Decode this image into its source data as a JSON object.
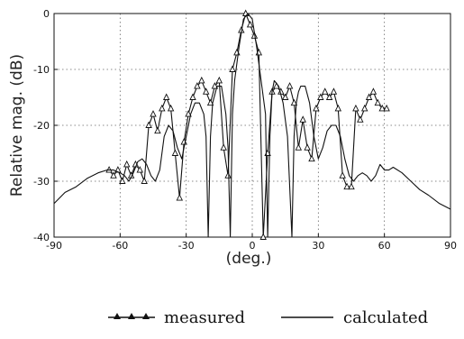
{
  "chart_data": {
    "type": "line",
    "xlabel": "(deg.)",
    "ylabel": "Relative mag. (dB)",
    "xlim": [
      -90,
      90
    ],
    "ylim": [
      -40,
      0
    ],
    "x_ticks": [
      -90,
      -60,
      -30,
      0,
      30,
      60,
      90
    ],
    "y_ticks": [
      0,
      -10,
      -20,
      -30,
      -40
    ],
    "grid": true,
    "legend_position": "bottom",
    "series": [
      {
        "name": "measured",
        "style": "line-with-triangles",
        "color": "#111111",
        "x": [
          -65,
          -63,
          -61,
          -59,
          -57,
          -55,
          -53,
          -51,
          -49,
          -47,
          -45,
          -43,
          -41,
          -39,
          -37,
          -35,
          -33,
          -31,
          -29,
          -27,
          -25,
          -23,
          -21,
          -19,
          -17,
          -15,
          -13,
          -11,
          -9,
          -7,
          -5,
          -3,
          -1,
          1,
          3,
          5,
          7,
          9,
          11,
          13,
          15,
          17,
          19,
          21,
          23,
          25,
          27,
          29,
          31,
          33,
          35,
          37,
          39,
          41,
          43,
          45,
          47,
          49,
          51,
          53,
          55,
          57,
          59,
          61
        ],
        "y": [
          -28,
          -29,
          -28,
          -30,
          -27,
          -29,
          -27,
          -28,
          -30,
          -20,
          -18,
          -21,
          -17,
          -15,
          -17,
          -25,
          -33,
          -23,
          -18,
          -15,
          -13,
          -12,
          -14,
          -16,
          -13,
          -12,
          -24,
          -29,
          -10,
          -7,
          -3,
          0,
          -2,
          -4,
          -7,
          -40,
          -25,
          -14,
          -13,
          -14,
          -15,
          -13,
          -16,
          -24,
          -19,
          -24,
          -26,
          -17,
          -15,
          -14,
          -15,
          -14,
          -17,
          -29,
          -31,
          -31,
          -17,
          -19,
          -17,
          -15,
          -14,
          -16,
          -17,
          -17
        ]
      },
      {
        "name": "calculated",
        "style": "line",
        "color": "#111111",
        "x": [
          -90,
          -85,
          -80,
          -75,
          -70,
          -66,
          -63,
          -60,
          -58,
          -56,
          -54,
          -52,
          -50,
          -48,
          -46,
          -44,
          -42,
          -40,
          -38,
          -36,
          -34,
          -32,
          -30,
          -28,
          -26,
          -24,
          -22,
          -21,
          -20,
          -19,
          -18,
          -16,
          -14,
          -12,
          -11,
          -10,
          -9,
          -8,
          -6,
          -4,
          -2,
          0,
          2,
          4,
          6,
          7,
          8,
          9,
          10,
          12,
          14,
          16,
          18,
          19,
          20,
          21,
          22,
          24,
          26,
          28,
          30,
          32,
          34,
          36,
          38,
          40,
          42,
          44,
          46,
          48,
          50,
          52,
          54,
          56,
          58,
          60,
          62,
          64,
          68,
          72,
          76,
          80,
          85,
          90
        ],
        "y": [
          -34,
          -32,
          -31,
          -29.5,
          -28.5,
          -28,
          -28,
          -28.5,
          -29,
          -30,
          -28.5,
          -26.5,
          -26,
          -27,
          -29,
          -30,
          -28,
          -22,
          -20,
          -21,
          -24,
          -26,
          -22,
          -18,
          -16,
          -16,
          -18,
          -22,
          -40,
          -22,
          -16,
          -13,
          -13,
          -18,
          -24,
          -40,
          -18,
          -12,
          -6,
          -1,
          0,
          -1,
          -6,
          -12,
          -18,
          -40,
          -22,
          -14,
          -12,
          -13,
          -16,
          -22,
          -40,
          -22,
          -16,
          -14,
          -13,
          -13,
          -16,
          -22,
          -26,
          -24,
          -21,
          -20,
          -20,
          -22,
          -26,
          -29,
          -30,
          -29,
          -28.5,
          -29,
          -30,
          -29,
          -27,
          -28,
          -28,
          -27.5,
          -28.5,
          -30,
          -31.5,
          -32.5,
          -34,
          -35
        ]
      }
    ]
  }
}
